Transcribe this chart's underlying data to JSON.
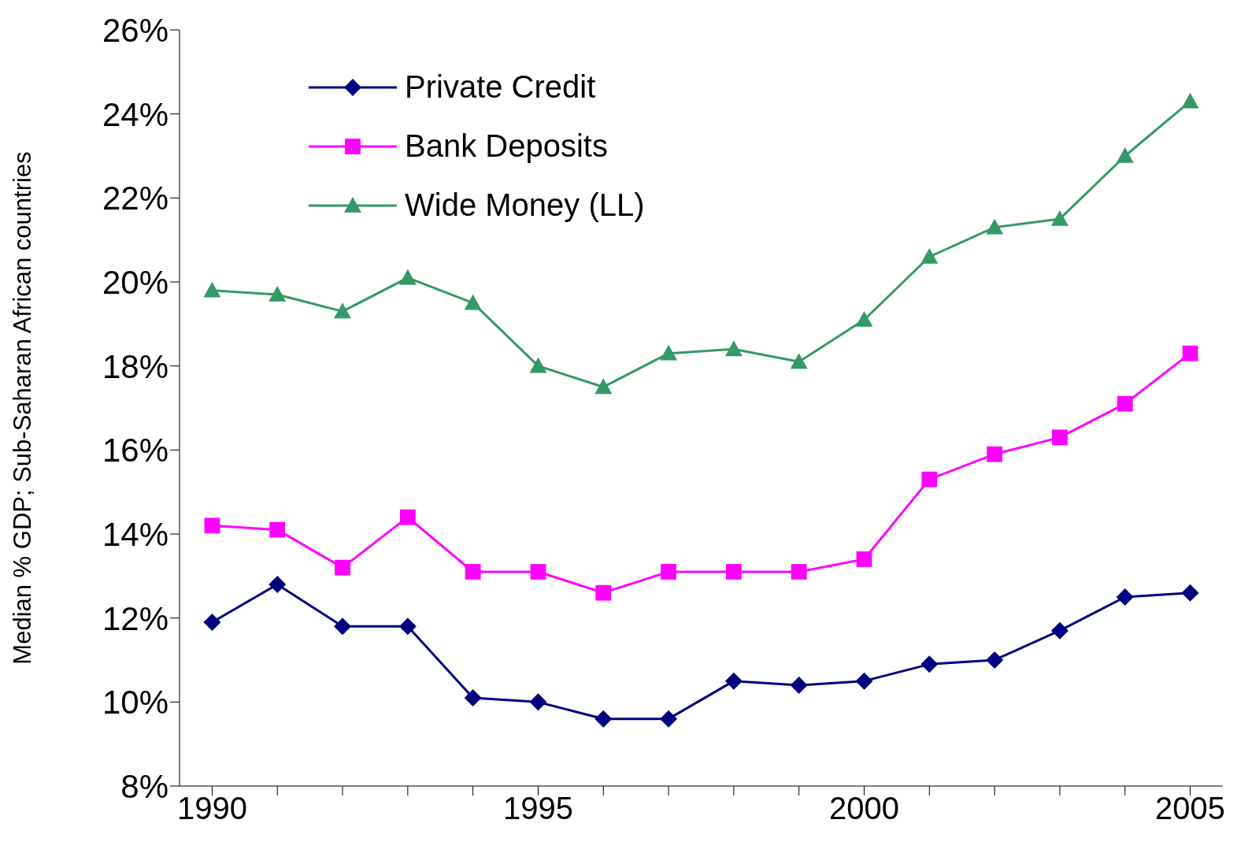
{
  "chart_data": {
    "type": "line",
    "ylabel": "Median % GDP; Sub-Saharan African countries",
    "categories": [
      "1990",
      null,
      null,
      null,
      null,
      "1995",
      null,
      null,
      null,
      null,
      "2000",
      null,
      null,
      null,
      null,
      "2005"
    ],
    "series": [
      {
        "name": "Private Credit",
        "color": "#000080",
        "marker": "diamond",
        "values": [
          11.9,
          12.8,
          11.8,
          11.8,
          10.1,
          10.0,
          9.6,
          9.6,
          10.5,
          10.4,
          10.5,
          10.9,
          11.0,
          11.7,
          12.5,
          12.6
        ]
      },
      {
        "name": "Bank Deposits",
        "color": "#ff00ff",
        "marker": "square",
        "values": [
          14.2,
          14.1,
          13.2,
          14.4,
          13.1,
          13.1,
          12.6,
          13.1,
          13.1,
          13.1,
          13.4,
          15.3,
          15.9,
          16.3,
          17.1,
          18.3
        ]
      },
      {
        "name": "Wide Money (LL)",
        "color": "#339966",
        "marker": "triangle",
        "values": [
          19.8,
          19.7,
          19.3,
          20.1,
          19.5,
          18.0,
          17.5,
          18.3,
          18.4,
          18.1,
          19.1,
          20.6,
          21.3,
          21.5,
          23.0,
          24.3
        ]
      }
    ],
    "ylim": [
      8,
      26
    ],
    "yticks": [
      {
        "value": 8,
        "label": "8%"
      },
      {
        "value": 10,
        "label": "10%"
      },
      {
        "value": 12,
        "label": "12%"
      },
      {
        "value": 14,
        "label": "14%"
      },
      {
        "value": 16,
        "label": "16%"
      },
      {
        "value": 18,
        "label": "18%"
      },
      {
        "value": 20,
        "label": "20%"
      },
      {
        "value": 22,
        "label": "22%"
      },
      {
        "value": 24,
        "label": "24%"
      },
      {
        "value": 26,
        "label": "26%"
      }
    ],
    "grid": false,
    "legend": "top left",
    "line_style": "solid"
  }
}
